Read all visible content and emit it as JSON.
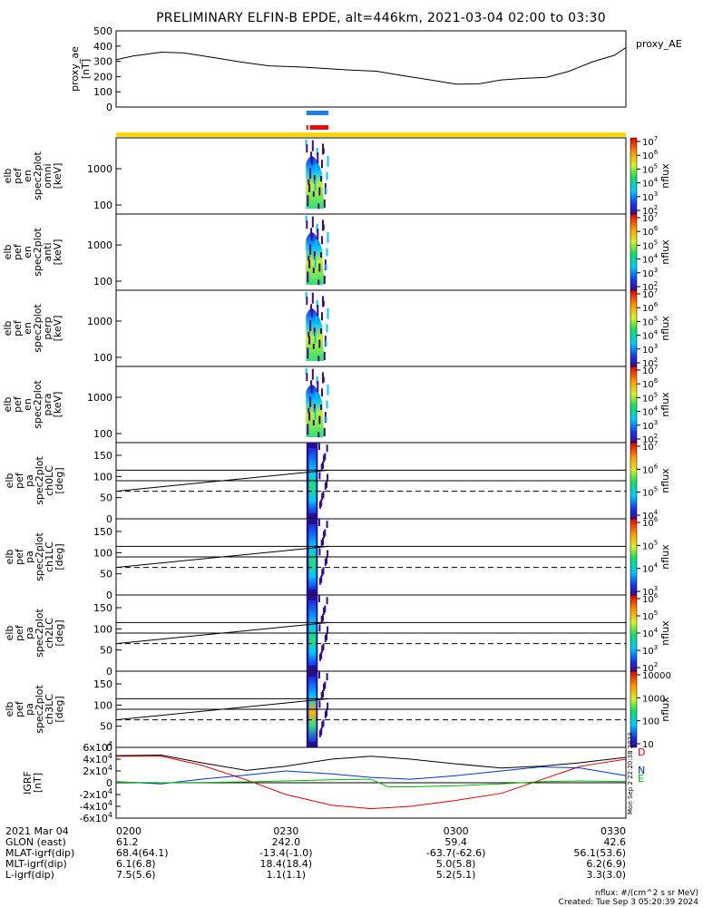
{
  "title": "PRELIMINARY ELFIN-B EPDE, alt=446km, 2021-03-04 02:00 to 03:30",
  "colors": {
    "axis": "#000000",
    "ae": "#000000",
    "bar_blue": "#1e7fe8",
    "bar_red": "#e01010",
    "bar_yellow": "#ffd700",
    "mag_d": "#e00000",
    "mag_n": "#0033cc",
    "mag_e": "#00bb00",
    "mag_total": "#000000"
  },
  "chart_data": [
    {
      "type": "line",
      "panel": "proxy_ae",
      "ylabel": [
        "proxy_ae",
        "[nT]"
      ],
      "right_label": "proxy_AE",
      "ylim": [
        0,
        500
      ],
      "yticks": [
        "0",
        "100",
        "200",
        "300",
        "400",
        "500"
      ],
      "x_minutes": [
        0,
        3,
        8,
        12,
        18,
        22,
        27,
        33,
        40,
        46,
        50,
        56,
        60,
        64,
        68,
        72,
        76,
        80,
        84,
        88,
        90
      ],
      "values": [
        310,
        335,
        360,
        355,
        320,
        295,
        270,
        262,
        245,
        235,
        210,
        175,
        150,
        152,
        178,
        188,
        195,
        235,
        295,
        340,
        390
      ]
    },
    {
      "type": "heatmap",
      "panel": "omni",
      "ylabel": [
        "elb",
        "pef",
        "en",
        "spec2plot",
        "omni",
        "[keV]"
      ],
      "scale": "log",
      "yticks": [
        "100",
        "1000"
      ],
      "cbar_label": "nflux",
      "cbar_ticks": [
        "10^2",
        "10^3",
        "10^4",
        "10^5",
        "10^6",
        "10^7"
      ],
      "science_window_minutes": [
        33.5,
        37.5
      ]
    },
    {
      "type": "heatmap",
      "panel": "anti",
      "ylabel": [
        "elb",
        "pef",
        "en",
        "spec2plot",
        "anti",
        "[keV]"
      ],
      "scale": "log",
      "yticks": [
        "100",
        "1000"
      ],
      "cbar_label": "nflux",
      "cbar_ticks": [
        "10^2",
        "10^3",
        "10^4",
        "10^5",
        "10^6",
        "10^7"
      ]
    },
    {
      "type": "heatmap",
      "panel": "perp",
      "ylabel": [
        "elb",
        "pef",
        "en",
        "spec2plot",
        "perp",
        "[keV]"
      ],
      "scale": "log",
      "yticks": [
        "100",
        "1000"
      ],
      "cbar_label": "nflux",
      "cbar_ticks": [
        "10^2",
        "10^3",
        "10^4",
        "10^5",
        "10^6",
        "10^7"
      ]
    },
    {
      "type": "heatmap",
      "panel": "para",
      "ylabel": [
        "elb",
        "pef",
        "en",
        "spec2plot",
        "para",
        "[keV]"
      ],
      "scale": "log",
      "yticks": [
        "100",
        "1000"
      ],
      "cbar_label": "nflux",
      "cbar_ticks": [
        "10^2",
        "10^3",
        "10^4",
        "10^5",
        "10^6",
        "10^7"
      ]
    },
    {
      "type": "heatmap",
      "panel": "ch0LC",
      "ylabel": [
        "elb",
        "pef",
        "pa",
        "spec2plot",
        "ch0LC",
        "[deg]"
      ],
      "ylim": [
        0,
        180
      ],
      "yticks": [
        "0",
        "50",
        "100",
        "150"
      ],
      "cbar_label": "nflux",
      "cbar_ticks": [
        "10^4",
        "10^5",
        "10^6",
        "10^7"
      ]
    },
    {
      "type": "heatmap",
      "panel": "ch1LC",
      "ylabel": [
        "elb",
        "pef",
        "pa",
        "spec2plot",
        "ch1LC",
        "[deg]"
      ],
      "ylim": [
        0,
        180
      ],
      "yticks": [
        "0",
        "50",
        "100",
        "150"
      ],
      "cbar_label": "nflux",
      "cbar_ticks": [
        "10^3",
        "10^4",
        "10^5",
        "10^6"
      ]
    },
    {
      "type": "heatmap",
      "panel": "ch2LC",
      "ylabel": [
        "elb",
        "pef",
        "pa",
        "spec2plot",
        "ch2LC",
        "[deg]"
      ],
      "ylim": [
        0,
        180
      ],
      "yticks": [
        "0",
        "50",
        "100",
        "150"
      ],
      "cbar_label": "nflux",
      "cbar_ticks": [
        "10^2",
        "10^3",
        "10^4",
        "10^5",
        "10^6"
      ]
    },
    {
      "type": "heatmap",
      "panel": "ch3LC",
      "ylabel": [
        "elb",
        "pef",
        "pa",
        "spec2plot",
        "ch3LC",
        "[deg]"
      ],
      "ylim": [
        0,
        180
      ],
      "yticks": [
        "0",
        "50",
        "100",
        "150"
      ],
      "cbar_label": "nflux",
      "cbar_ticks": [
        "10",
        "100",
        "1000",
        "10000"
      ]
    },
    {
      "type": "line",
      "panel": "dB",
      "ylabel": [
        "dB",
        "[nT]"
      ],
      "ylabel_alt": "IGRF",
      "ylim": [
        -60000,
        60000
      ],
      "yticks": [
        "-6x10^4",
        "-4x10^4",
        "-2x10^4",
        "0",
        "2x10^4",
        "4x10^4",
        "6x10^4"
      ],
      "series": [
        {
          "name": "D",
          "x_minutes": [
            0,
            8,
            15,
            23,
            30,
            38,
            45,
            52,
            60,
            68,
            75,
            82,
            90
          ],
          "values": [
            45000,
            45000,
            30000,
            5000,
            -20000,
            -38000,
            -44000,
            -40000,
            -30000,
            -18000,
            5000,
            28000,
            40000
          ]
        },
        {
          "name": "N",
          "x_minutes": [
            0,
            8,
            15,
            23,
            30,
            38,
            45,
            52,
            60,
            68,
            75,
            82,
            90
          ],
          "values": [
            2000,
            -2000,
            6000,
            13000,
            20000,
            15000,
            9000,
            6000,
            12000,
            20000,
            27000,
            25000,
            12000
          ]
        },
        {
          "name": "E",
          "x_minutes": [
            0,
            8,
            15,
            23,
            30,
            38,
            45,
            48,
            52,
            60,
            68,
            75,
            82,
            90
          ],
          "values": [
            1000,
            0,
            500,
            1500,
            3000,
            5000,
            6000,
            -7000,
            -7000,
            -5000,
            -2000,
            2000,
            3000,
            2000
          ]
        },
        {
          "name": "total",
          "x_minutes": [
            0,
            8,
            15,
            23,
            30,
            38,
            45,
            52,
            60,
            68,
            75,
            82,
            90
          ],
          "values": [
            46000,
            47000,
            34000,
            21000,
            28000,
            40000,
            45000,
            40000,
            32000,
            25000,
            28000,
            34000,
            43000
          ]
        }
      ],
      "legend": [
        "D",
        "N",
        "E"
      ],
      "side_note": "Mon Sep  2 22:20:38 2024"
    }
  ],
  "footer": {
    "rows": [
      {
        "label": "2021 Mar 04",
        "values": [
          "0200",
          "0230",
          "0300",
          "0330"
        ]
      },
      {
        "label": "GLON (east)",
        "values": [
          "61.2",
          "242.0",
          "59.4",
          "42.6"
        ]
      },
      {
        "label": "MLAT-igrf(dip)",
        "values": [
          "68.4(64.1)",
          "-13.4(-1.0)",
          "-63.7(-62.6)",
          "56.1(53.6)"
        ]
      },
      {
        "label": "MLT-igrf(dip)",
        "values": [
          "6.1(6.8)",
          "18.4(18.4)",
          "5.0(5.8)",
          "6.2(6.9)"
        ]
      },
      {
        "label": "L-igrf(dip)",
        "values": [
          "7.5(5.6)",
          "1.1(1.1)",
          "5.2(5.1)",
          "3.3(3.0)"
        ]
      }
    ],
    "units_note": "nflux: #/(cm^2 s sr MeV)",
    "created": "Created: Tue Sep  3 05:20:39 2024"
  }
}
